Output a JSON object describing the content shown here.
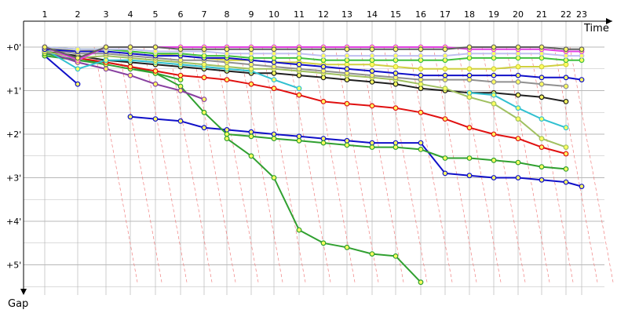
{
  "chart_data": {
    "type": "line",
    "title": "",
    "xlabel": "Time",
    "ylabel": "Gap",
    "x_ticks": [
      "1",
      "2",
      "3",
      "4",
      "5",
      "6",
      "7",
      "8",
      "9",
      "10",
      "11",
      "12",
      "13",
      "14",
      "15",
      "16",
      "17",
      "18",
      "19",
      "20",
      "21",
      "22",
      "23"
    ],
    "y_ticks": [
      "+0'",
      "+1'",
      "+2'",
      "+3'",
      "+4'",
      "+5'"
    ],
    "ylim": [
      0,
      5.5
    ],
    "grid": true,
    "legend": "none",
    "colors": {
      "grid": "#b8b8b8",
      "dashed_guides": "#f08080",
      "axis": "#000000"
    },
    "series": [
      {
        "color": "#1010c8",
        "values": [
          0.2,
          0.85,
          null,
          1.6,
          1.65,
          1.7,
          1.85,
          1.9,
          1.95,
          2.0,
          2.05,
          2.1,
          2.15,
          2.2,
          2.2,
          2.2,
          2.9,
          2.95,
          3.0,
          3.0,
          3.05,
          3.1,
          3.2
        ]
      },
      {
        "color": "#30a030",
        "values": [
          0.2,
          0.3,
          0.35,
          0.45,
          0.6,
          0.9,
          1.5,
          2.0,
          2.05,
          2.1,
          2.15,
          2.2,
          2.25,
          2.3,
          2.3,
          2.35,
          2.55,
          2.55,
          2.6,
          2.65,
          2.75,
          2.8,
          null
        ]
      },
      {
        "color": "#30a030",
        "values": [
          0.15,
          0.3,
          0.4,
          0.5,
          0.6,
          0.75,
          null,
          2.1,
          2.5,
          3.0,
          4.2,
          4.5,
          4.6,
          4.75,
          4.8,
          5.4,
          null,
          null,
          null,
          null,
          null,
          null,
          null
        ]
      },
      {
        "color": "#e01010",
        "values": [
          0.1,
          0.25,
          0.35,
          0.45,
          0.55,
          0.65,
          0.7,
          0.75,
          0.85,
          0.95,
          1.1,
          1.25,
          1.3,
          1.35,
          1.4,
          1.5,
          1.65,
          1.85,
          2.0,
          2.1,
          2.3,
          2.45,
          null
        ]
      },
      {
        "color": "#8840a0",
        "values": [
          0.1,
          0.35,
          0.5,
          0.65,
          0.85,
          1.0,
          1.2,
          null,
          null,
          null,
          null,
          null,
          null,
          null,
          null,
          null,
          null,
          null,
          null,
          null,
          null,
          null,
          null
        ]
      },
      {
        "color": "#202020",
        "values": [
          0.1,
          0.2,
          0.3,
          0.35,
          0.4,
          0.45,
          0.5,
          0.55,
          0.6,
          0.6,
          0.65,
          0.7,
          0.75,
          0.8,
          0.85,
          0.95,
          1.0,
          1.05,
          1.05,
          1.1,
          1.15,
          1.25,
          null
        ]
      },
      {
        "color": "#30c0d0",
        "values": [
          0.05,
          0.5,
          0.3,
          0.3,
          0.35,
          0.4,
          0.45,
          0.5,
          0.55,
          0.75,
          0.95,
          null,
          null,
          null,
          null,
          null,
          null,
          1.05,
          1.1,
          1.4,
          1.65,
          1.85,
          null
        ]
      },
      {
        "color": "#a0c060",
        "values": [
          0.1,
          0.25,
          0.2,
          0.25,
          0.3,
          0.35,
          0.4,
          0.45,
          0.5,
          0.5,
          0.55,
          0.6,
          0.65,
          0.7,
          0.75,
          0.85,
          0.95,
          1.15,
          1.3,
          1.65,
          2.1,
          2.3,
          null
        ]
      },
      {
        "color": "#909090",
        "values": [
          0.05,
          0.15,
          0.15,
          0.2,
          0.25,
          0.3,
          0.3,
          0.35,
          0.4,
          0.45,
          0.5,
          0.55,
          0.6,
          0.65,
          0.7,
          0.75,
          0.75,
          0.75,
          0.8,
          0.8,
          0.85,
          0.9,
          null
        ]
      },
      {
        "color": "#d0d040",
        "values": [
          0.0,
          0.1,
          0.05,
          0.1,
          0.15,
          0.2,
          0.25,
          0.3,
          0.3,
          0.35,
          0.35,
          0.4,
          0.4,
          0.4,
          0.45,
          0.5,
          0.5,
          0.5,
          0.5,
          0.45,
          0.45,
          0.4,
          null
        ]
      },
      {
        "color": "#1010c8",
        "values": [
          0.05,
          0.1,
          0.1,
          0.15,
          0.2,
          0.2,
          0.25,
          0.25,
          0.3,
          0.35,
          0.4,
          0.45,
          0.5,
          0.55,
          0.6,
          0.65,
          0.65,
          0.65,
          0.65,
          0.65,
          0.7,
          0.7,
          0.75
        ]
      },
      {
        "color": "#40c040",
        "values": [
          0.0,
          0.05,
          0.05,
          0.1,
          0.15,
          0.15,
          0.2,
          0.2,
          0.25,
          0.25,
          0.25,
          0.3,
          0.3,
          0.3,
          0.3,
          0.3,
          0.3,
          0.25,
          0.25,
          0.25,
          0.25,
          0.3,
          0.3
        ]
      },
      {
        "color": "#c0c0f0",
        "values": [
          0.0,
          0.05,
          0.05,
          0.05,
          0.1,
          0.1,
          0.1,
          0.15,
          0.15,
          0.15,
          0.15,
          0.2,
          0.2,
          0.2,
          0.2,
          0.2,
          0.2,
          0.15,
          0.15,
          0.15,
          0.15,
          0.2,
          0.2
        ]
      },
      {
        "color": "#e040e0",
        "values": [
          0.0,
          0.3,
          0.0,
          0.0,
          0.0,
          0.0,
          0.0,
          0.0,
          0.0,
          0.0,
          0.0,
          0.0,
          0.0,
          0.0,
          0.0,
          0.0,
          0.0,
          0.05,
          0.05,
          0.05,
          0.05,
          0.1,
          0.1
        ]
      },
      {
        "color": "#606060",
        "values": [
          0.0,
          0.25,
          0.0,
          0.0,
          0.0,
          0.05,
          0.05,
          0.05,
          0.05,
          0.05,
          0.05,
          0.05,
          0.05,
          0.05,
          0.05,
          0.05,
          0.05,
          0.0,
          0.0,
          0.0,
          0.0,
          0.05,
          0.05
        ]
      }
    ]
  }
}
